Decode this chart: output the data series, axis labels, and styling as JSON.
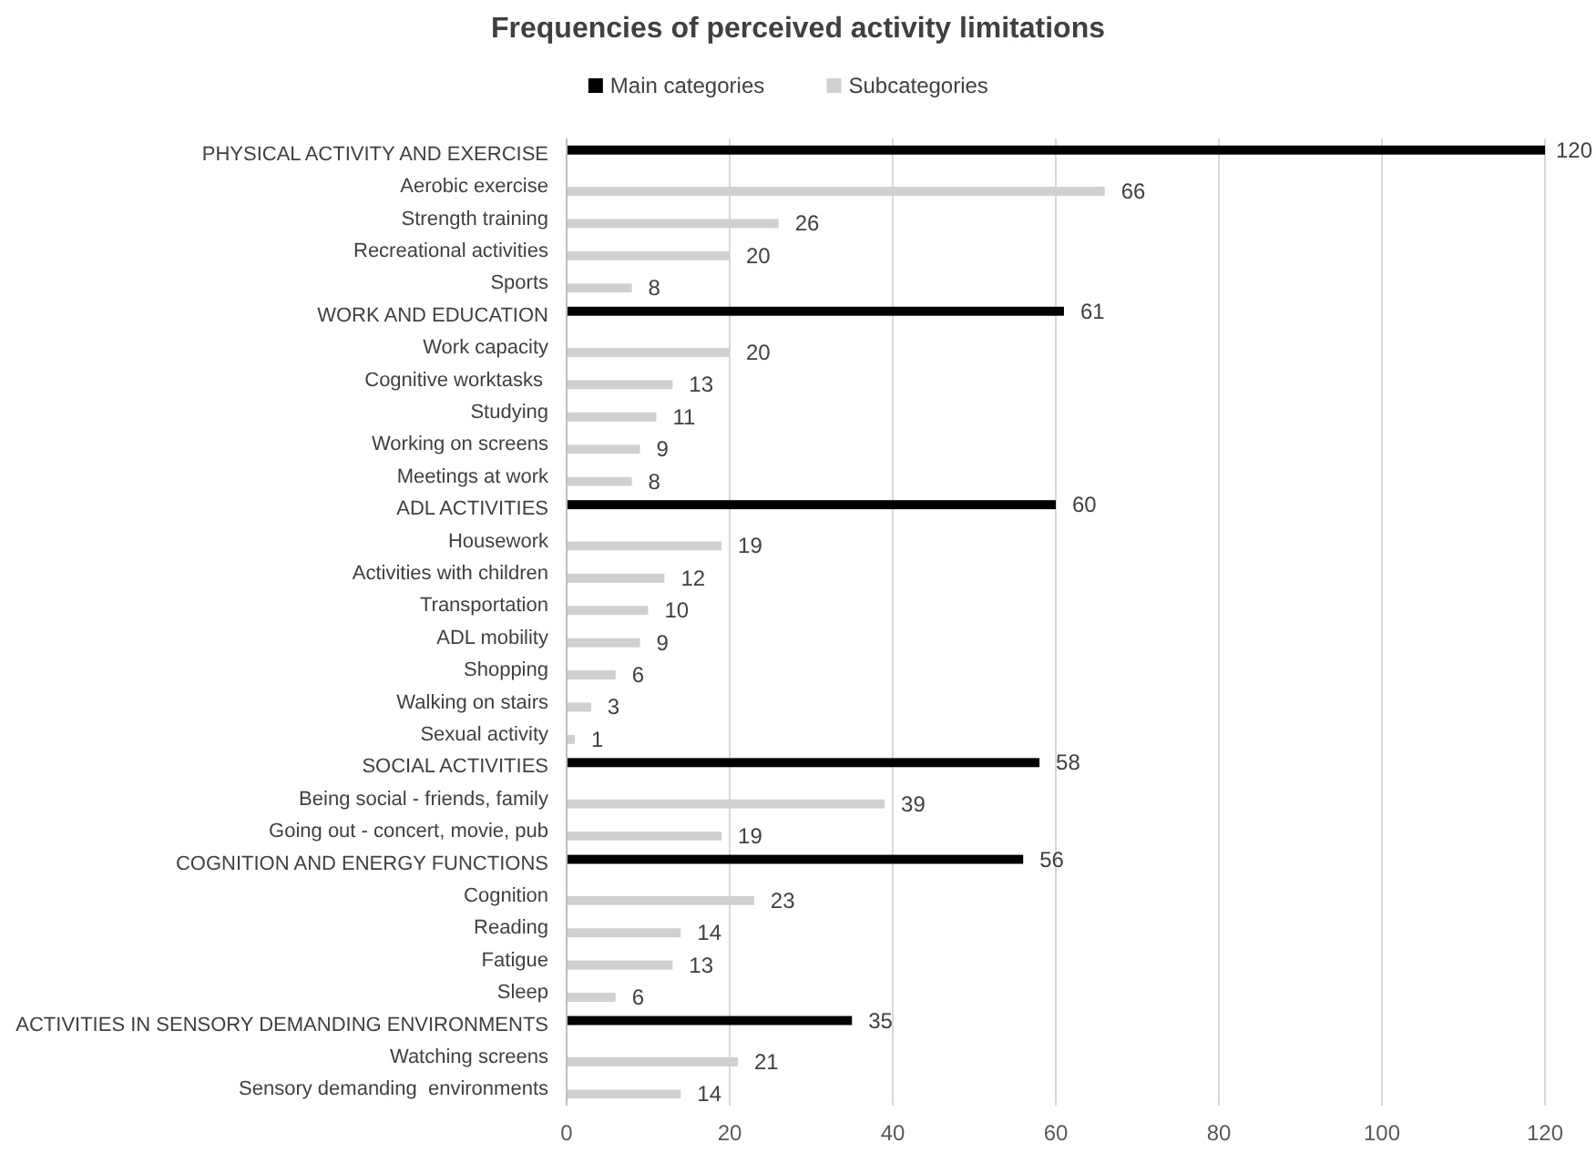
{
  "chart_data": {
    "type": "bar",
    "orientation": "horizontal",
    "title": "Frequencies of perceived activity limitations",
    "categories": [
      "PHYSICAL ACTIVITY AND EXERCISE",
      "Aerobic exercise",
      "Strength training",
      "Recreational activities",
      "Sports",
      "WORK AND EDUCATION",
      "Work capacity",
      "Cognitive worktasks ",
      "Studying",
      "Working on screens",
      "Meetings at work",
      "ADL ACTIVITIES",
      "Housework",
      "Activities with children",
      "Transportation",
      "ADL mobility",
      "Shopping",
      "Walking on stairs",
      "Sexual activity",
      "SOCIAL ACTIVITIES",
      "Being social - friends, family",
      "Going out - concert, movie, pub",
      "COGNITION AND ENERGY FUNCTIONS",
      "Cognition",
      "Reading",
      "Fatigue",
      "Sleep",
      "ACTIVITIES IN SENSORY DEMANDING ENVIRONMENTS",
      "Watching screens",
      "Sensory demanding  environments"
    ],
    "series": [
      {
        "name": "Main categories",
        "color": "#000000",
        "values": [
          120,
          null,
          null,
          null,
          null,
          61,
          null,
          null,
          null,
          null,
          null,
          60,
          null,
          null,
          null,
          null,
          null,
          null,
          null,
          58,
          null,
          null,
          56,
          null,
          null,
          null,
          null,
          35,
          null,
          null
        ]
      },
      {
        "name": "Subcategories",
        "color": "#d0d0d0",
        "values": [
          null,
          66,
          26,
          20,
          8,
          null,
          20,
          13,
          11,
          9,
          8,
          null,
          19,
          12,
          10,
          9,
          6,
          3,
          1,
          null,
          39,
          19,
          null,
          23,
          14,
          13,
          6,
          null,
          21,
          14
        ]
      }
    ],
    "xlim": [
      0,
      120
    ],
    "xticks": [
      0,
      20,
      40,
      60,
      80,
      100,
      120
    ],
    "grid": "x",
    "legend": "top",
    "data_labels": true
  }
}
